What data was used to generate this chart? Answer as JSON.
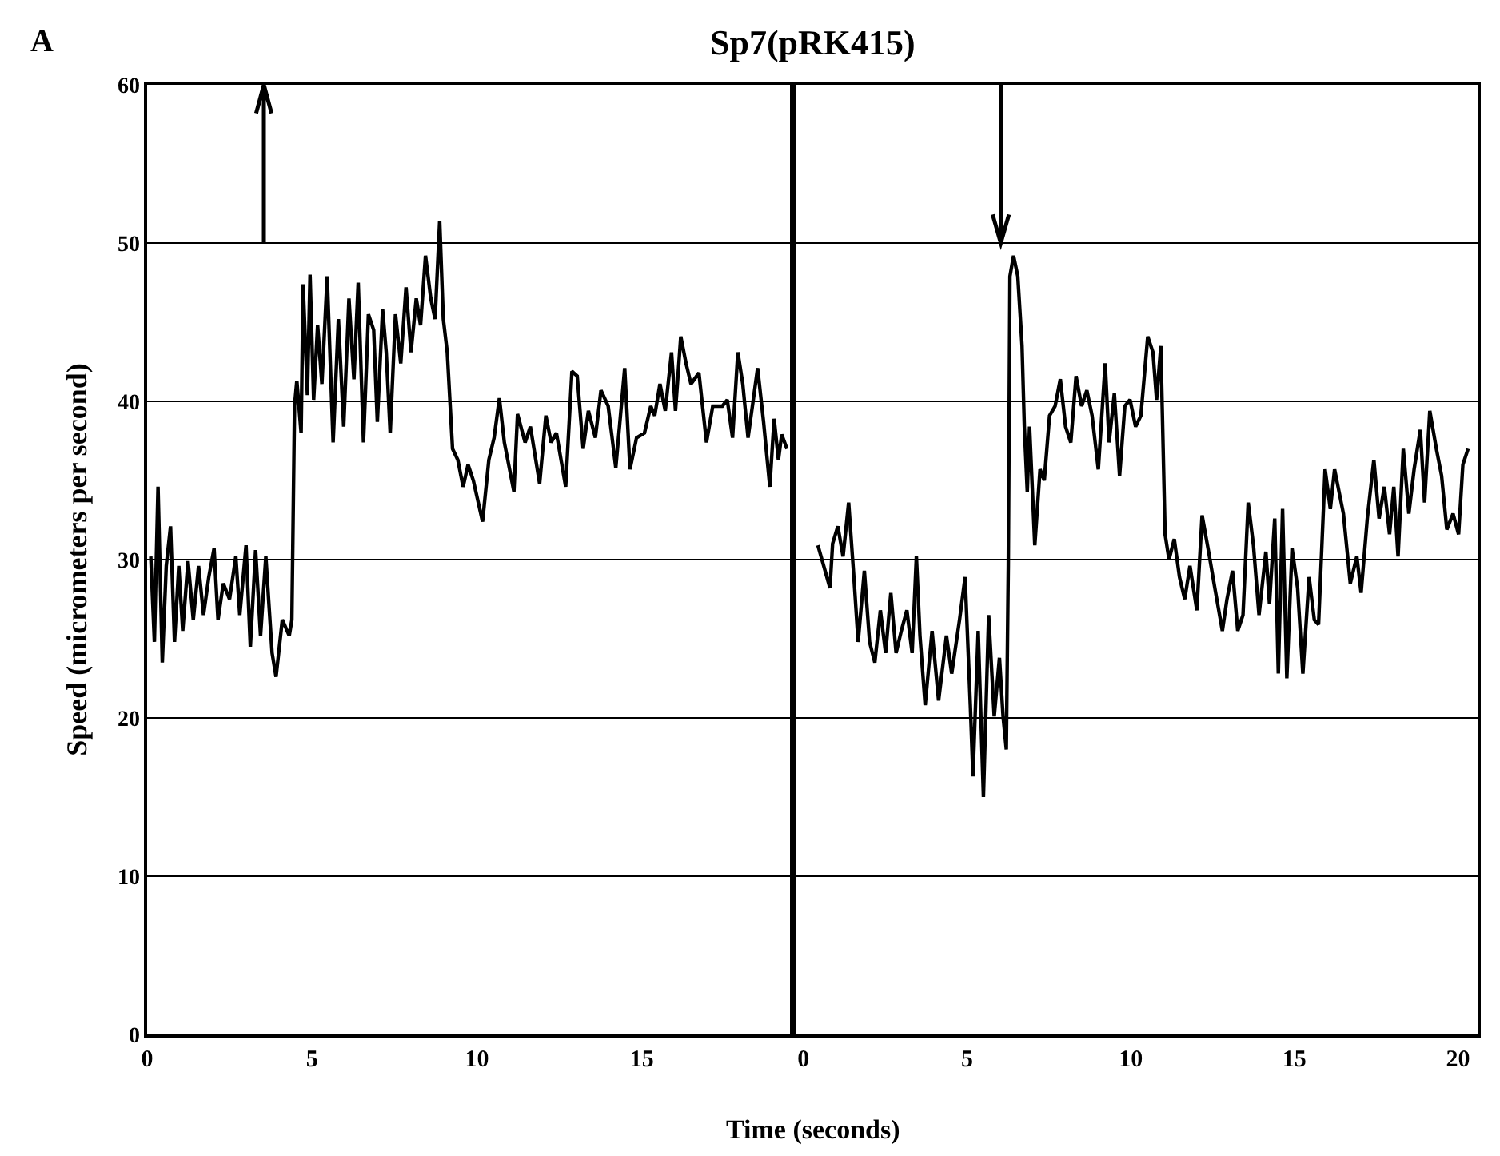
{
  "chart_data": [
    {
      "type": "line",
      "title": "Sp7(pRK415)",
      "xlabel": "Time (seconds)",
      "ylabel": "Speed (micrometers per second)",
      "annotations": [
        "A"
      ],
      "ref_lines": [
        {
          "axis": "x",
          "value": 3.54
        }
      ],
      "xlim": [
        0,
        19.5
      ],
      "xticks": [
        0,
        5,
        10,
        15
      ],
      "ylim": [
        0,
        60
      ],
      "yticks": [
        0,
        10,
        20,
        30,
        40,
        50,
        60
      ],
      "grid": "y",
      "marker": "none",
      "line_style": "solid",
      "series": [
        {
          "color": "#000000",
          "x": [
            0.11,
            0.22,
            0.33,
            0.46,
            0.58,
            0.71,
            0.83,
            0.96,
            1.08,
            1.24,
            1.4,
            1.56,
            1.71,
            1.87,
            2.03,
            2.15,
            2.31,
            2.5,
            2.69,
            2.81,
            3.0,
            3.13,
            3.29,
            3.44,
            3.6,
            3.79,
            3.91,
            4.1,
            4.31,
            4.39,
            4.47,
            4.54,
            4.67,
            4.73,
            4.86,
            4.94,
            5.05,
            5.17,
            5.3,
            5.46,
            5.64,
            5.8,
            5.96,
            6.12,
            6.27,
            6.4,
            6.56,
            6.71,
            6.87,
            6.98,
            7.14,
            7.25,
            7.37,
            7.53,
            7.69,
            7.85,
            8.0,
            8.16,
            8.29,
            8.44,
            8.6,
            8.73,
            8.87,
            8.98,
            9.1,
            9.26,
            9.42,
            9.58,
            9.73,
            9.89,
            10.17,
            10.36,
            10.52,
            10.68,
            10.83,
            11.12,
            11.23,
            11.46,
            11.62,
            11.9,
            12.09,
            12.25,
            12.41,
            12.69,
            12.88,
            13.04,
            13.22,
            13.38,
            13.59,
            13.76,
            13.98,
            14.21,
            14.48,
            14.64,
            14.84,
            15.08,
            15.27,
            15.39,
            15.55,
            15.71,
            15.9,
            16.02,
            16.18,
            16.34,
            16.49,
            16.73,
            16.96,
            17.15,
            17.44,
            17.59,
            17.75,
            17.91,
            18.06,
            18.22,
            18.51,
            18.69,
            18.88,
            19.01,
            19.14,
            19.24,
            19.4
          ],
          "values": [
            30.2,
            24.8,
            34.6,
            23.5,
            29.6,
            32.1,
            24.8,
            29.6,
            25.5,
            29.9,
            26.2,
            29.6,
            26.5,
            28.9,
            30.7,
            26.2,
            28.5,
            27.5,
            30.2,
            26.5,
            30.9,
            24.5,
            30.6,
            25.2,
            30.2,
            24.1,
            22.6,
            26.2,
            25.2,
            26.2,
            39.7,
            41.3,
            38.0,
            47.4,
            40.4,
            48.0,
            40.1,
            44.8,
            41.1,
            47.9,
            37.4,
            45.2,
            38.4,
            46.5,
            41.4,
            47.5,
            37.4,
            45.5,
            44.5,
            38.7,
            45.8,
            43.1,
            38.0,
            45.5,
            42.4,
            47.2,
            43.1,
            46.5,
            44.8,
            49.2,
            46.5,
            45.2,
            51.4,
            45.2,
            43.1,
            37.0,
            36.3,
            34.6,
            36.0,
            35.0,
            32.4,
            36.3,
            37.7,
            40.2,
            37.4,
            34.3,
            39.2,
            37.4,
            38.4,
            34.8,
            39.1,
            37.4,
            38.0,
            34.6,
            41.9,
            41.6,
            37.0,
            39.4,
            37.7,
            40.7,
            39.7,
            35.8,
            42.1,
            35.7,
            37.7,
            38.0,
            39.7,
            39.1,
            41.1,
            39.4,
            43.1,
            39.4,
            44.1,
            42.4,
            41.1,
            41.8,
            37.4,
            39.7,
            39.7,
            40.1,
            37.7,
            43.1,
            41.1,
            37.7,
            42.1,
            38.7,
            34.6,
            38.9,
            36.3,
            37.9,
            37.0
          ]
        }
      ]
    },
    {
      "type": "line",
      "ref_lines": [
        {
          "axis": "x",
          "value": 6.03
        }
      ],
      "xlim": [
        -0.24,
        20.6
      ],
      "xticks": [
        0,
        5,
        10,
        15,
        20
      ],
      "ylim": [
        0,
        60
      ],
      "yticks": [
        0,
        10,
        20,
        30,
        40,
        50,
        60
      ],
      "tick_labels": "x",
      "grid": "y",
      "marker": "none",
      "line_style": "solid",
      "series": [
        {
          "color": "#000000",
          "x": [
            0.44,
            0.81,
            0.89,
            1.05,
            1.21,
            1.38,
            1.54,
            1.67,
            1.86,
            2.02,
            2.18,
            2.35,
            2.51,
            2.67,
            2.83,
            2.99,
            3.16,
            3.32,
            3.45,
            3.56,
            3.72,
            3.93,
            4.13,
            4.37,
            4.53,
            4.77,
            4.94,
            5.1,
            5.18,
            5.34,
            5.5,
            5.66,
            5.83,
            5.99,
            6.1,
            6.2,
            6.26,
            6.31,
            6.42,
            6.55,
            6.68,
            6.75,
            6.84,
            6.91,
            7.07,
            7.23,
            7.36,
            7.52,
            7.69,
            7.85,
            8.01,
            8.17,
            8.33,
            8.5,
            8.66,
            8.82,
            9.01,
            9.22,
            9.34,
            9.5,
            9.66,
            9.82,
            9.98,
            10.15,
            10.31,
            10.52,
            10.68,
            10.79,
            10.92,
            11.05,
            11.17,
            11.33,
            11.49,
            11.65,
            11.81,
            12.02,
            12.18,
            12.38,
            12.57,
            12.8,
            12.94,
            13.11,
            13.27,
            13.43,
            13.59,
            13.75,
            13.92,
            14.13,
            14.24,
            14.4,
            14.51,
            14.64,
            14.77,
            14.93,
            15.1,
            15.26,
            15.45,
            15.61,
            15.74,
            15.94,
            16.1,
            16.23,
            16.5,
            16.71,
            16.91,
            17.04,
            17.23,
            17.43,
            17.59,
            17.75,
            17.91,
            18.04,
            18.17,
            18.33,
            18.5,
            18.66,
            18.85,
            18.98,
            19.14,
            19.34,
            19.5,
            19.66,
            19.85,
            20.02,
            20.15,
            20.31
          ],
          "values": [
            30.9,
            28.2,
            31.0,
            32.1,
            30.2,
            33.6,
            28.9,
            24.8,
            29.3,
            24.8,
            23.5,
            26.8,
            24.1,
            27.9,
            24.1,
            25.5,
            26.8,
            24.1,
            30.2,
            25.2,
            20.8,
            25.5,
            21.1,
            25.2,
            22.8,
            26.2,
            28.9,
            20.8,
            16.3,
            25.5,
            15.0,
            26.5,
            20.1,
            23.8,
            20.1,
            18.0,
            29.6,
            47.9,
            49.2,
            47.9,
            43.5,
            38.4,
            34.3,
            38.4,
            30.9,
            35.7,
            35.0,
            39.1,
            39.7,
            41.4,
            38.4,
            37.4,
            41.6,
            39.7,
            40.7,
            39.1,
            35.7,
            42.4,
            37.4,
            40.5,
            35.3,
            39.7,
            40.1,
            38.4,
            39.1,
            44.1,
            43.1,
            40.1,
            43.5,
            31.6,
            30.0,
            31.3,
            28.9,
            27.5,
            29.6,
            26.8,
            32.8,
            30.5,
            28.2,
            25.5,
            27.5,
            29.3,
            25.5,
            26.5,
            33.6,
            30.9,
            26.5,
            30.5,
            27.2,
            32.6,
            22.8,
            33.2,
            22.5,
            30.7,
            28.2,
            22.8,
            28.9,
            26.2,
            25.9,
            35.7,
            33.2,
            35.7,
            32.9,
            28.5,
            30.2,
            27.9,
            32.6,
            36.3,
            32.6,
            34.6,
            31.6,
            34.6,
            30.2,
            37.0,
            32.9,
            35.7,
            38.2,
            33.6,
            39.4,
            37.0,
            35.3,
            31.9,
            32.9,
            31.6,
            36.0,
            37.0
          ]
        }
      ]
    }
  ]
}
